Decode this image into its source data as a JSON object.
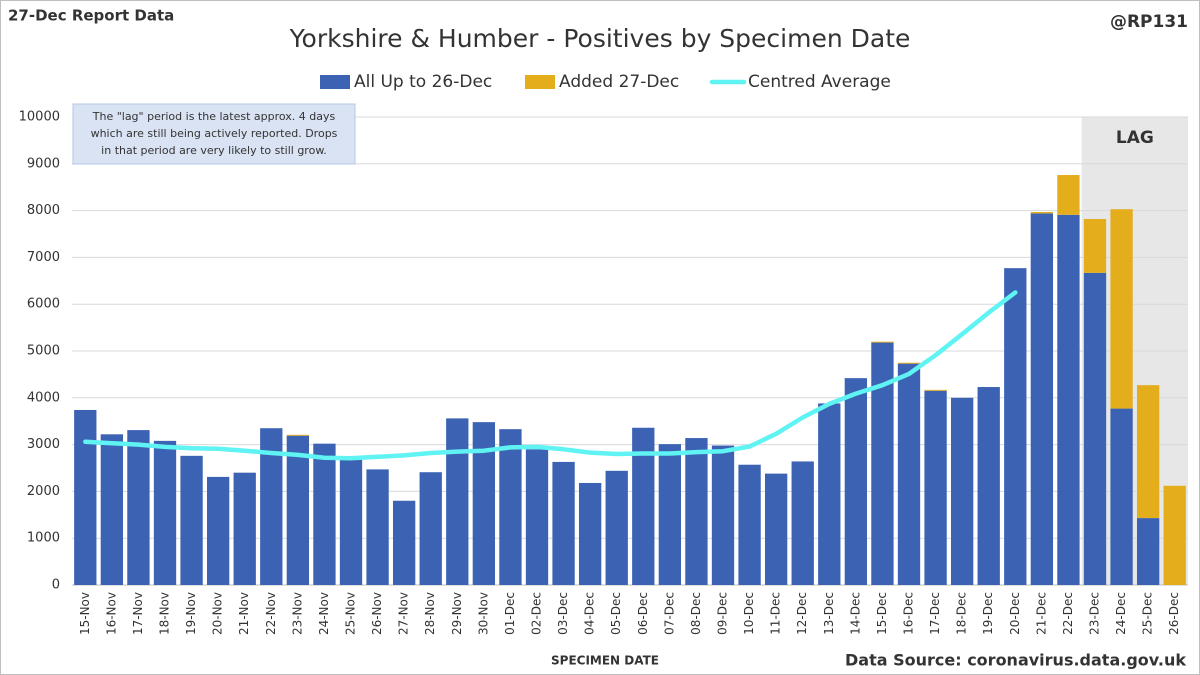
{
  "chart_data": {
    "type": "bar",
    "stacked": true,
    "title": "Yorkshire & Humber - Positives by Specimen Date",
    "header_left": "27-Dec Report Data",
    "header_right": "@RP131",
    "x_label": "SPECIMEN DATE",
    "source": "Data Source: coronavirus.data.gov.uk",
    "note": [
      "The \"lag\" period is the latest approx. 4 days",
      "which are still being actively reported.  Drops",
      "in that period are very likely to still grow."
    ],
    "lag_region": {
      "label": "LAG",
      "from": "23-Dec",
      "to": "26-Dec"
    },
    "categories": [
      "15-Nov",
      "16-Nov",
      "17-Nov",
      "18-Nov",
      "19-Nov",
      "20-Nov",
      "21-Nov",
      "22-Nov",
      "23-Nov",
      "24-Nov",
      "25-Nov",
      "26-Nov",
      "27-Nov",
      "28-Nov",
      "29-Nov",
      "30-Nov",
      "01-Dec",
      "02-Dec",
      "03-Dec",
      "04-Dec",
      "05-Dec",
      "06-Dec",
      "07-Dec",
      "08-Dec",
      "09-Dec",
      "10-Dec",
      "11-Dec",
      "12-Dec",
      "13-Dec",
      "14-Dec",
      "15-Dec",
      "16-Dec",
      "17-Dec",
      "18-Dec",
      "19-Dec",
      "20-Dec",
      "21-Dec",
      "22-Dec",
      "23-Dec",
      "24-Dec",
      "25-Dec",
      "26-Dec"
    ],
    "series": [
      {
        "name": "All Up to 26-Dec",
        "type": "bar",
        "color": "#3c63b3",
        "values": [
          3740,
          3220,
          3310,
          3080,
          2760,
          2310,
          2400,
          3350,
          3190,
          3020,
          2710,
          2470,
          1800,
          2410,
          3560,
          3480,
          3330,
          2900,
          2630,
          2180,
          2440,
          3360,
          3010,
          3140,
          2980,
          2570,
          2380,
          2640,
          3880,
          4420,
          5180,
          4730,
          4150,
          4000,
          4230,
          6770,
          7940,
          7910,
          6670,
          3770,
          1430,
          0
        ]
      },
      {
        "name": "Added 27-Dec",
        "type": "bar",
        "color": "#e3ad1c",
        "values": [
          0,
          0,
          0,
          0,
          0,
          0,
          0,
          0,
          20,
          0,
          0,
          0,
          0,
          0,
          0,
          0,
          0,
          0,
          0,
          0,
          0,
          0,
          0,
          0,
          0,
          0,
          0,
          0,
          0,
          0,
          20,
          20,
          20,
          0,
          0,
          0,
          30,
          850,
          1150,
          4260,
          2840,
          2120
        ]
      },
      {
        "name": "Centred Average",
        "type": "line",
        "color": "#5ff3f3",
        "values": [
          3060,
          3030,
          3000,
          2950,
          2920,
          2910,
          2870,
          2820,
          2780,
          2720,
          2710,
          2740,
          2770,
          2820,
          2850,
          2870,
          2940,
          2950,
          2900,
          2830,
          2800,
          2810,
          2810,
          2840,
          2860,
          2960,
          3230,
          3580,
          3870,
          4090,
          4270,
          4510,
          4910,
          5360,
          5820,
          6250,
          null,
          null,
          null,
          null,
          null,
          null
        ]
      }
    ],
    "ylim": [
      0,
      10000
    ],
    "yticks": [
      0,
      1000,
      2000,
      3000,
      4000,
      5000,
      6000,
      7000,
      8000,
      9000,
      10000
    ],
    "grid": true
  }
}
